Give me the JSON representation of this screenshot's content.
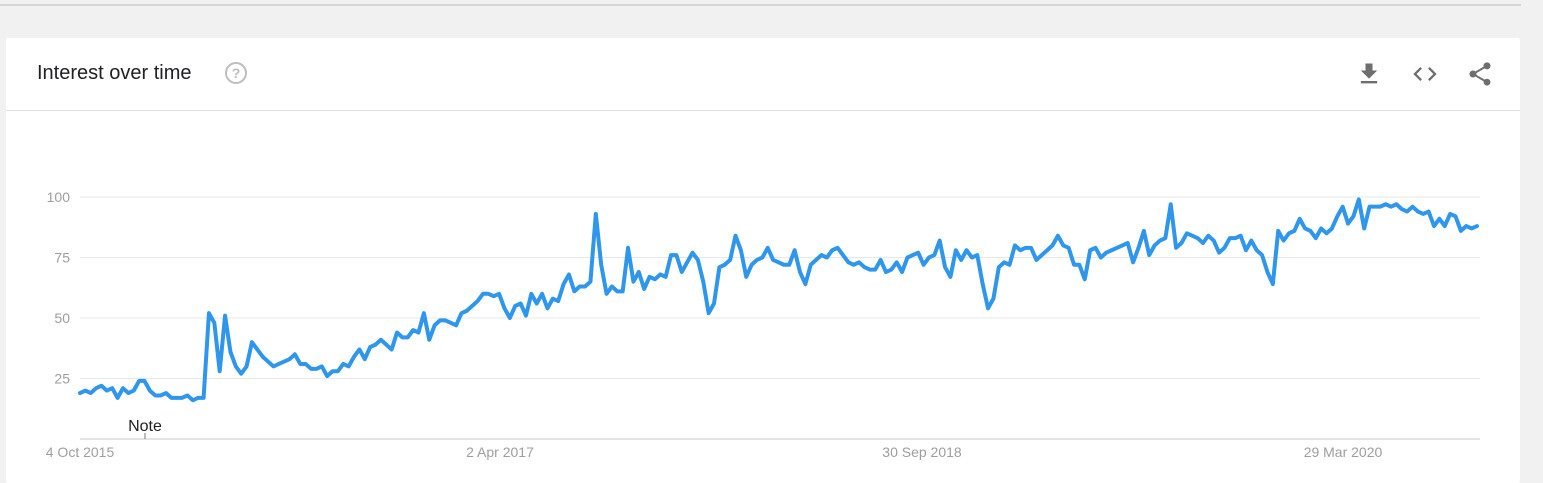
{
  "header": {
    "title": "Interest over time",
    "help_icon": "help-circle-icon",
    "tools": [
      {
        "name": "download",
        "icon": "download-icon"
      },
      {
        "name": "embed",
        "icon": "code-icon"
      },
      {
        "name": "share",
        "icon": "share-icon"
      }
    ]
  },
  "colors": {
    "line": "#2f96ee",
    "grid": "#e8e8e8",
    "axis": "#c8c8c8",
    "tick_text": "#9e9e9e"
  },
  "chart_data": {
    "type": "line",
    "title": "",
    "xlabel": "",
    "ylabel": "",
    "ylim": [
      0,
      100
    ],
    "yticks": [
      25,
      50,
      75,
      100
    ],
    "x_tick_labels": [
      "4 Oct 2015",
      "2 Apr 2017",
      "30 Sep 2018",
      "29 Mar 2020"
    ],
    "annotation": "Note",
    "grid": true,
    "series": [
      {
        "values": [
          19,
          20,
          19,
          21,
          22,
          20,
          21,
          17,
          21,
          19,
          20,
          24,
          24,
          20,
          18,
          18,
          19,
          17,
          17,
          17,
          18,
          16,
          17,
          17,
          52,
          48,
          28,
          51,
          36,
          30,
          27,
          30,
          40,
          37,
          34,
          32,
          30,
          31,
          32,
          33,
          35,
          31,
          31,
          29,
          29,
          30,
          26,
          28,
          28,
          31,
          30,
          34,
          37,
          33,
          38,
          39,
          41,
          39,
          37,
          44,
          42,
          42,
          45,
          44,
          52,
          41,
          47,
          49,
          49,
          48,
          47,
          52,
          53,
          55,
          57,
          60,
          60,
          59,
          60,
          54,
          50,
          55,
          56,
          51,
          60,
          56,
          60,
          54,
          58,
          57,
          64,
          68,
          61,
          63,
          63,
          65,
          93,
          72,
          60,
          63,
          61,
          61,
          79,
          65,
          69,
          62,
          67,
          66,
          68,
          67,
          76,
          76,
          69,
          73,
          77,
          74,
          65,
          52,
          56,
          71,
          72,
          74,
          84,
          78,
          67,
          72,
          74,
          75,
          79,
          74,
          73,
          72,
          72,
          78,
          69,
          64,
          72,
          74,
          76,
          75,
          78,
          79,
          76,
          73,
          72,
          73,
          71,
          70,
          70,
          74,
          69,
          70,
          73,
          69,
          75,
          76,
          77,
          72,
          75,
          76,
          82,
          71,
          67,
          78,
          74,
          78,
          75,
          76,
          64,
          54,
          58,
          71,
          73,
          72,
          80,
          78,
          79,
          79,
          74,
          76,
          78,
          80,
          84,
          80,
          79,
          72,
          72,
          66,
          78,
          79,
          75,
          77,
          78,
          79,
          80,
          81,
          73,
          79,
          86,
          76,
          80,
          82,
          83,
          97,
          79,
          81,
          85,
          84,
          83,
          81,
          84,
          82,
          77,
          79,
          83,
          83,
          84,
          78,
          82,
          78,
          76,
          69,
          64,
          86,
          82,
          85,
          86,
          91,
          87,
          86,
          83,
          87,
          85,
          87,
          92,
          96,
          89,
          92,
          99,
          87,
          96,
          96,
          96,
          97,
          96,
          97,
          95,
          94,
          96,
          94,
          93,
          94,
          88,
          91,
          88,
          93,
          92,
          86,
          88,
          87,
          88
        ]
      }
    ]
  }
}
